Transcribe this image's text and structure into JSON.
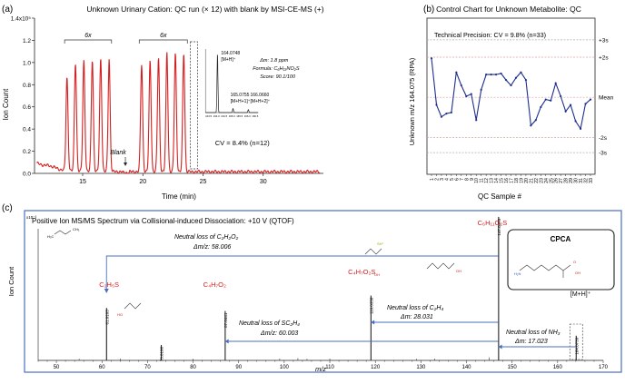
{
  "panels": {
    "a": "(a)",
    "b": "(b)",
    "c": "(c)"
  },
  "chart_data": [
    {
      "type": "line",
      "title": "Unknown Urinary Cation: QC run (× 12) with blank by MSI-CE-MS (+)",
      "xlabel": "Time (min)",
      "ylabel": "Ion Count",
      "xlim": [
        11,
        35
      ],
      "ylim": [
        0,
        140000
      ],
      "x_ticks": [
        "15",
        "20",
        "25",
        "30"
      ],
      "y_ticks": [
        "0.0",
        "0.2",
        "0.4",
        "0.6",
        "0.8",
        "1.0",
        "1.2",
        "1.4x10⁵"
      ],
      "peaks": {
        "x": [
          13.7,
          14.4,
          15.1,
          15.8,
          16.5,
          17.2,
          19.9,
          20.6,
          21.3,
          22.0,
          22.7,
          23.4
        ],
        "y": [
          84000,
          98000,
          100000,
          101000,
          102000,
          102000,
          97000,
          100000,
          103000,
          108000,
          107000,
          107000
        ]
      },
      "annotations": {
        "group1": "6x",
        "group2": "6x",
        "blank": "Blank",
        "cv": "CV = 8.4% (n=12)",
        "dm": "Δm: 1.8 ppm",
        "formula": "Formula: C₆H₁₃NO₂S",
        "score": "Score: 90.1/100"
      },
      "inset": {
        "peaks": [
          {
            "mz": "164.0748",
            "ion": "[M+H]⁺",
            "rel": 100
          },
          {
            "mz": "165.0755",
            "ion": "[M+H+1]⁺",
            "rel": 7
          },
          {
            "mz": "166.0660",
            "ion": "[M+H+2]⁺",
            "rel": 5
          }
        ],
        "xticks": [
          "163.5",
          "164.0",
          "164.5",
          "165.0",
          "165.5",
          "166.0",
          "166.5"
        ]
      }
    },
    {
      "type": "line",
      "title": "Control Chart for Unknown Metabolite: QC",
      "xlabel": "QC Sample #",
      "ylabel": "Unknown m/z 164.075  (RPA)",
      "categories": [
        "1",
        "2",
        "3",
        "4",
        "5",
        "6",
        "7",
        "8",
        "9",
        "10",
        "11",
        "12",
        "13",
        "14",
        "15",
        "16",
        "17",
        "18",
        "19",
        "20",
        "21",
        "22",
        "23",
        "24",
        "25",
        "26",
        "27",
        "28",
        "29",
        "30",
        "31",
        "32",
        "33"
      ],
      "values": [
        0.225,
        0.182,
        0.171,
        0.174,
        0.175,
        0.212,
        0.2,
        0.19,
        0.192,
        0.168,
        0.196,
        0.21,
        0.21,
        0.21,
        0.211,
        0.205,
        0.2,
        0.207,
        0.212,
        0.205,
        0.163,
        0.168,
        0.18,
        0.187,
        0.186,
        0.202,
        0.19,
        0.176,
        0.182,
        0.167,
        0.16,
        0.183,
        0.187
      ],
      "ylim": [
        0.118,
        0.262
      ],
      "limits": [
        {
          "label": "+3s",
          "value": 0.242
        },
        {
          "label": "+2s",
          "value": 0.226
        },
        {
          "label": "Mean",
          "value": 0.189
        },
        {
          "label": "-2s",
          "value": 0.152
        },
        {
          "label": "-3s",
          "value": 0.138
        }
      ],
      "annotation": "Technical Precision: CV = 9.8% (n=33)"
    },
    {
      "type": "bar",
      "title": "Positive Ion MS/MS Spectrum via Collisional-induced Dissociation: +10 V (QTOF)",
      "xlabel": "m/z",
      "ylabel": "Ion Count",
      "y_exponent": "x10⁻³",
      "xlim": [
        46,
        170
      ],
      "x_ticks": [
        "50",
        "60",
        "70",
        "80",
        "90",
        "100",
        "110",
        "120",
        "130",
        "140",
        "150",
        "160",
        "170"
      ],
      "peaks": [
        {
          "mz": 61.0103,
          "label": "61.0103",
          "rel": 0.34
        },
        {
          "mz": 73.0106,
          "label": "73.0106",
          "rel": 0.1
        },
        {
          "mz": 87.0441,
          "label": "87.0441",
          "rel": 0.32
        },
        {
          "mz": 119.0358,
          "label": "119.0358",
          "rel": 0.42
        },
        {
          "mz": 147.047,
          "label": "147.0470",
          "rel": 0.93
        },
        {
          "mz": 164.0739,
          "label": "164.0739",
          "rel": 0.16
        }
      ],
      "fragments": {
        "c2h5s": "C₂H₅S",
        "c4h7o2": "C₄H₇O₂",
        "c4h7o2s": "C₄H₇O₂S",
        "c6h11o2s": "C₆H₁₁O₂S",
        "c6h13no2s": "C₆H₁₃NO₂S",
        "mh": "[M+H]⁺",
        "cpca": "CPCA"
      },
      "losses": [
        {
          "label": "Neutral loss of C₂H₂O₂",
          "dm": "Δm/z: 58.006"
        },
        {
          "label": "Neutral loss of C₂H₄",
          "dm": "Δm: 28.031"
        },
        {
          "label": "Neutral loss of SC₂H₄",
          "dm": "Δm/z: 60.003"
        },
        {
          "label": "Neutral loss of NH₃",
          "dm": "Δm: 17.023"
        }
      ],
      "structure_labels": {
        "h3c": "H₃C",
        "ch3": "CH₃",
        "ho": "HO",
        "oh": "OH",
        "o": "O",
        "h2n": "H₂N",
        "sh": "SH⁺"
      }
    }
  ]
}
